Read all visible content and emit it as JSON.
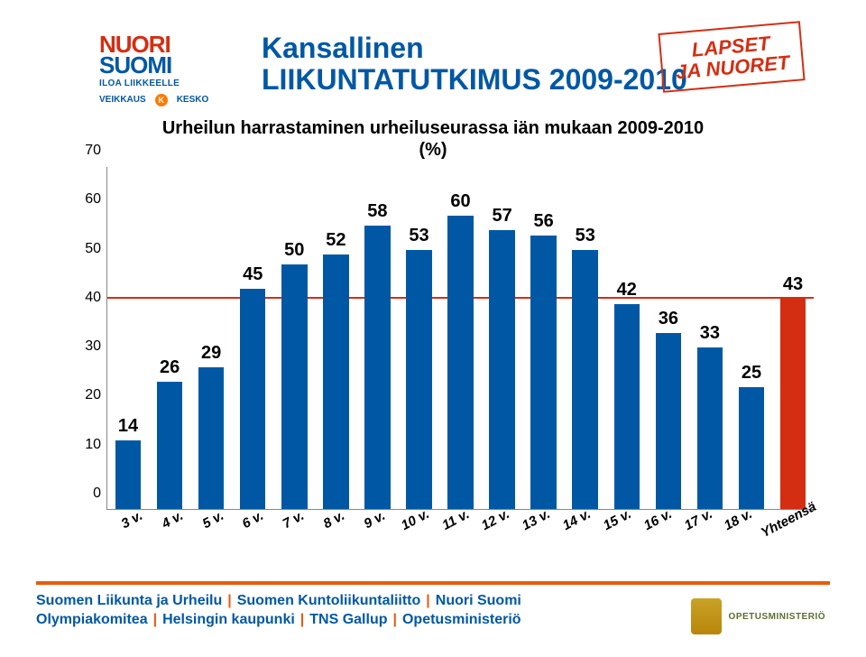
{
  "logo": {
    "line1": "NUORI",
    "line2": "SUOMI",
    "tagline": "ILOA LIIKKEELLE",
    "sponsor1": "VEIKKAUS",
    "sponsor2_icon": "K",
    "sponsor2": "KESKO"
  },
  "title": {
    "l1": "Kansallinen",
    "l2": "LIIKUNTATUTKIMUS 2009-2010"
  },
  "stamp": {
    "l1": "LAPSET",
    "l2": "JA NUORET"
  },
  "subtitle": "Urheilun harrastaminen urheiluseurassa iän mukaan 2009-2010\n(%)",
  "chart": {
    "type": "bar",
    "ylim": [
      0,
      70
    ],
    "ytick_step": 10,
    "yticks": [
      0,
      10,
      20,
      30,
      40,
      50,
      60,
      70
    ],
    "reference_line_value": 43,
    "reference_line_color": "#d42e12",
    "bar_default_color": "#0058a5",
    "bar_highlight_color": "#d42e12",
    "label_fontsize": 20,
    "tick_fontsize": 16,
    "categories": [
      "3 v.",
      "4 v.",
      "5 v.",
      "6 v.",
      "7 v.",
      "8 v.",
      "9 v.",
      "10 v.",
      "11 v.",
      "12 v.",
      "13 v.",
      "14 v.",
      "15 v.",
      "16 v.",
      "17 v.",
      "18 v.",
      "Yhteensä"
    ],
    "values": [
      14,
      26,
      29,
      45,
      50,
      52,
      58,
      53,
      60,
      57,
      56,
      53,
      42,
      36,
      33,
      25,
      43
    ],
    "bar_colors": [
      "#0058a5",
      "#0058a5",
      "#0058a5",
      "#0058a5",
      "#0058a5",
      "#0058a5",
      "#0058a5",
      "#0058a5",
      "#0058a5",
      "#0058a5",
      "#0058a5",
      "#0058a5",
      "#0058a5",
      "#0058a5",
      "#0058a5",
      "#0058a5",
      "#d42e12"
    ],
    "bar_width": 0.62,
    "background_color": "#ffffff"
  },
  "footer": {
    "items": [
      "Suomen Liikunta ja Urheilu",
      "Suomen Kuntoliikuntaliitto",
      "Nuori Suomi",
      "Olympiakomitea",
      "Helsingin kaupunki",
      "TNS Gallup",
      "Opetusministeriö"
    ],
    "line_break_after": 3,
    "separator": "|"
  },
  "ministry_logo": "OPETUSMINISTERIÖ"
}
